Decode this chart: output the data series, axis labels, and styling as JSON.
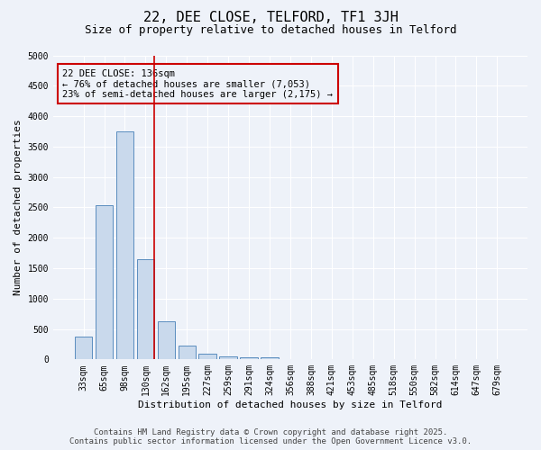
{
  "title": "22, DEE CLOSE, TELFORD, TF1 3JH",
  "subtitle": "Size of property relative to detached houses in Telford",
  "xlabel": "Distribution of detached houses by size in Telford",
  "ylabel": "Number of detached properties",
  "categories": [
    "33sqm",
    "65sqm",
    "98sqm",
    "130sqm",
    "162sqm",
    "195sqm",
    "227sqm",
    "259sqm",
    "291sqm",
    "324sqm",
    "356sqm",
    "388sqm",
    "421sqm",
    "453sqm",
    "485sqm",
    "518sqm",
    "550sqm",
    "582sqm",
    "614sqm",
    "647sqm",
    "679sqm"
  ],
  "values": [
    380,
    2530,
    3750,
    1650,
    620,
    230,
    100,
    50,
    40,
    30,
    0,
    0,
    0,
    0,
    0,
    0,
    0,
    0,
    0,
    0,
    0
  ],
  "bar_color": "#c9d9ec",
  "bar_edgecolor": "#5b8dbf",
  "ylim": [
    0,
    5000
  ],
  "yticks": [
    0,
    500,
    1000,
    1500,
    2000,
    2500,
    3000,
    3500,
    4000,
    4500,
    5000
  ],
  "vline_x_index": 3.43,
  "vline_color": "#cc0000",
  "annotation_text": "22 DEE CLOSE: 136sqm\n← 76% of detached houses are smaller (7,053)\n23% of semi-detached houses are larger (2,175) →",
  "annotation_box_color": "#cc0000",
  "footer_line1": "Contains HM Land Registry data © Crown copyright and database right 2025.",
  "footer_line2": "Contains public sector information licensed under the Open Government Licence v3.0.",
  "bg_color": "#eef2f9",
  "grid_color": "#ffffff",
  "title_fontsize": 11,
  "subtitle_fontsize": 9,
  "tick_fontsize": 7,
  "ylabel_fontsize": 8,
  "xlabel_fontsize": 8,
  "footer_fontsize": 6.5
}
